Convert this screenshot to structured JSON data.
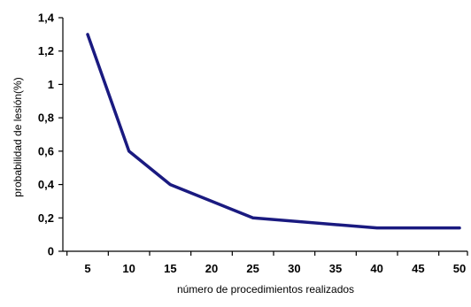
{
  "chart_data": {
    "type": "line",
    "title": "",
    "xlabel": "número de procedimientos realizados",
    "ylabel": "probabilidad de lesión(%)",
    "x_ticks": [
      5,
      10,
      15,
      20,
      25,
      30,
      35,
      40,
      45,
      50
    ],
    "y_ticks": [
      "0",
      "0,2",
      "0,4",
      "0,6",
      "0,8",
      "1",
      "1,2",
      "1,4"
    ],
    "xlim": [
      5,
      50
    ],
    "ylim": [
      0,
      1.4
    ],
    "grid": false,
    "legend": "none",
    "series": [
      {
        "x": [
          5,
          10,
          15,
          25,
          40,
          50
        ],
        "y": [
          1.3,
          0.6,
          0.4,
          0.2,
          0.14,
          0.14
        ],
        "color": "#1a1a80"
      }
    ]
  }
}
